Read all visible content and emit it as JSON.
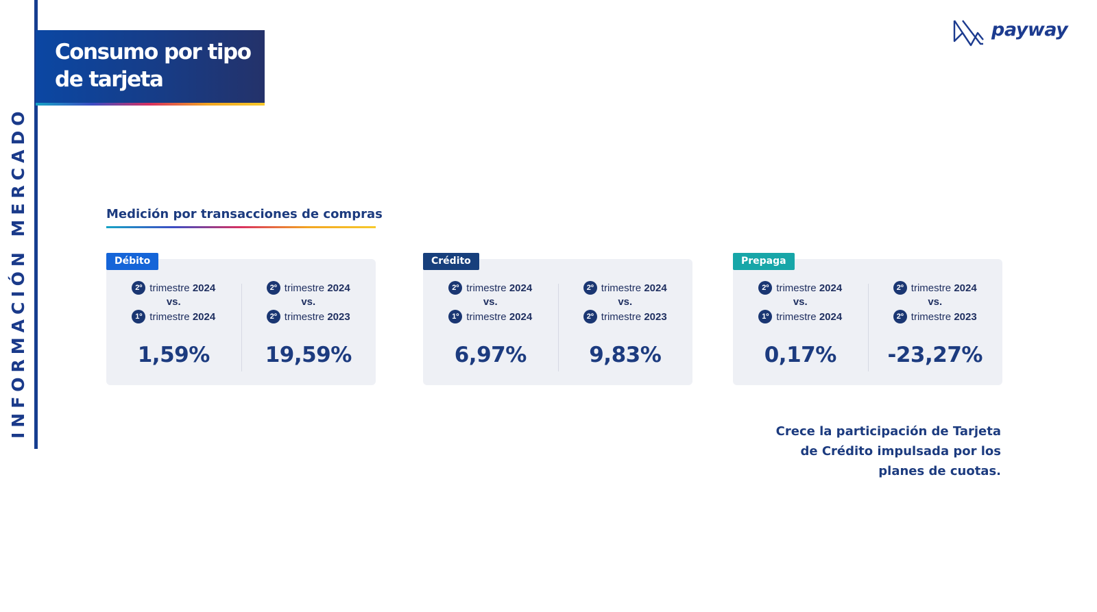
{
  "side_label": "INFORMACIÓN MERCADO",
  "title": {
    "line1": "Consumo por tipo",
    "line2": "de tarjeta"
  },
  "logo": {
    "text": "payway",
    "icon": "payway-logo-icon"
  },
  "subtitle": "Medición por transacciones de compras",
  "labels": {
    "trimestre": "trimestre",
    "vs": "vs.",
    "ord2": "2º",
    "ord1": "1º"
  },
  "cards": [
    {
      "name": "Débito",
      "color": "#1565d8",
      "left": {
        "a_num": "2º",
        "a_year": "2024",
        "b_num": "1º",
        "b_year": "2024",
        "value": "1,59%"
      },
      "right": {
        "a_num": "2º",
        "a_year": "2024",
        "b_num": "2º",
        "b_year": "2023",
        "value": "19,59%"
      }
    },
    {
      "name": "Crédito",
      "color": "#173f7c",
      "left": {
        "a_num": "2º",
        "a_year": "2024",
        "b_num": "1º",
        "b_year": "2024",
        "value": "6,97%"
      },
      "right": {
        "a_num": "2º",
        "a_year": "2024",
        "b_num": "2º",
        "b_year": "2023",
        "value": "9,83%"
      }
    },
    {
      "name": "Prepaga",
      "color": "#17a6a8",
      "left": {
        "a_num": "2º",
        "a_year": "2024",
        "b_num": "1º",
        "b_year": "2024",
        "value": "0,17%"
      },
      "right": {
        "a_num": "2º",
        "a_year": "2024",
        "b_num": "2º",
        "b_year": "2023",
        "value": "-23,27%"
      }
    }
  ],
  "note": {
    "line1": "Crece la participación de Tarjeta",
    "line2": "de Crédito impulsada por los",
    "line3": "planes de cuotas."
  }
}
